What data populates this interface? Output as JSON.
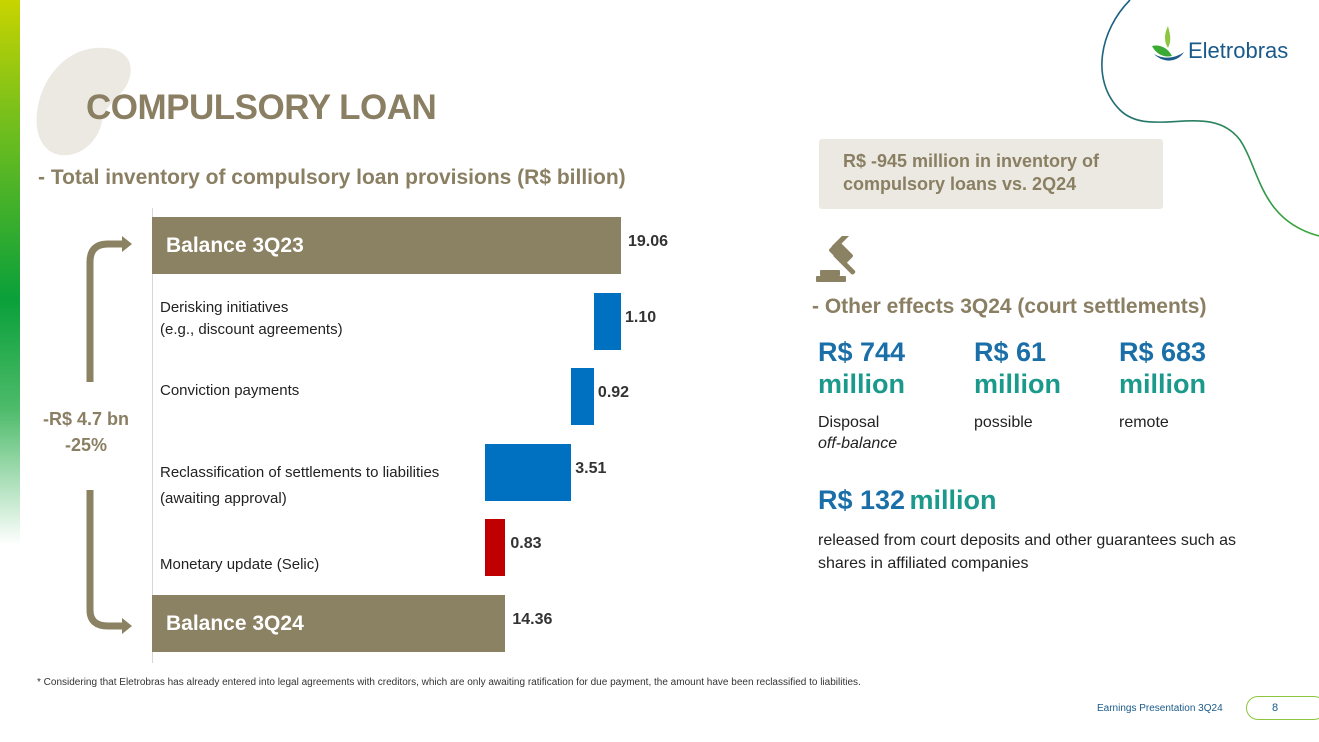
{
  "brand": {
    "name": "Eletrobras"
  },
  "title": "COMPULSORY LOAN",
  "subtitle": "- Total inventory of compulsory loan provisions (R$ billion)",
  "chart_data": {
    "type": "bar",
    "subtype": "waterfall",
    "orientation": "horizontal",
    "categories": [
      "Balance 3Q23",
      "Derisking initiatives (e.g., discount agreements)",
      "Conviction payments",
      "Reclassification of settlements to liabilities (awaiting approval)",
      "Monetary update (Selic)",
      "Balance 3Q24"
    ],
    "values": [
      19.06,
      -1.1,
      -0.92,
      -3.51,
      0.83,
      14.36
    ],
    "value_labels": [
      "19.06",
      "1.10",
      "0.92",
      "3.51",
      "0.83",
      "14.36"
    ],
    "bar_kinds": [
      "total",
      "decrease",
      "decrease",
      "decrease",
      "increase",
      "total"
    ],
    "colors": {
      "total": "#8b8163",
      "decrease": "#0070c0",
      "increase": "#c00000"
    },
    "grid": false,
    "legend": "none"
  },
  "labels": {
    "balance_start": "Balance 3Q23",
    "derisking_line1": "Derisking initiatives",
    "derisking_line2": "(e.g., discount agreements)",
    "conviction": "Conviction payments",
    "reclass_line1": "Reclassification of settlements to liabilities",
    "reclass_line2": "(awaiting approval)",
    "monetary": "Monetary update (Selic)",
    "balance_end": "Balance 3Q24"
  },
  "change": {
    "amount": "-R$ 4.7 bn",
    "percent": "-25%"
  },
  "callout": "R$ -945 million in inventory of compulsory loans vs. 2Q24",
  "effects": {
    "title": "- Other effects 3Q24 (court settlements)",
    "items": [
      {
        "amount": "R$ 744",
        "unit": "million",
        "desc": "Disposal",
        "desc2": "off-balance"
      },
      {
        "amount": "R$ 61",
        "unit": "million",
        "desc": "possible"
      },
      {
        "amount": "R$ 683",
        "unit": "million",
        "desc": "remote"
      }
    ],
    "released": {
      "amount": "R$ 132",
      "unit": "million",
      "desc": "released from court deposits and other guarantees such as shares in affiliated companies"
    }
  },
  "icons": {
    "gavel": "gavel-icon"
  },
  "footnote": "* Considering that Eletrobras has already entered into legal agreements with creditors, which are only awaiting ratification for due payment, the amount have been reclassified to liabilities.",
  "footer": {
    "label": "Earnings Presentation 3Q24",
    "page": "8"
  }
}
